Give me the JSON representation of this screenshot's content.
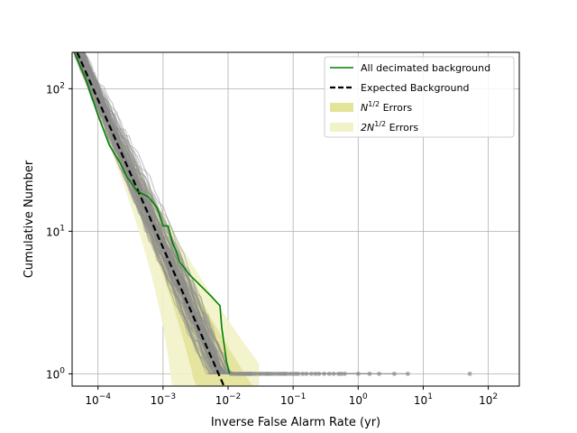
{
  "chart_data": {
    "type": "line",
    "xlabel": "Inverse False Alarm Rate (yr)",
    "ylabel": "Cumulative Number",
    "xscale": "log",
    "yscale": "log",
    "xlim": [
      4e-05,
      300
    ],
    "ylim": [
      0.82,
      180
    ],
    "x_ticks": [
      0.0001,
      0.001,
      0.01,
      0.1,
      1,
      10,
      100
    ],
    "x_tick_labels": [
      {
        "base": "10",
        "exp": "−4"
      },
      {
        "base": "10",
        "exp": "−3"
      },
      {
        "base": "10",
        "exp": "−2"
      },
      {
        "base": "10",
        "exp": "−1"
      },
      {
        "base": "10",
        "exp": "0"
      },
      {
        "base": "10",
        "exp": "1"
      },
      {
        "base": "10",
        "exp": "2"
      }
    ],
    "y_ticks": [
      1,
      10,
      100
    ],
    "y_tick_labels": [
      {
        "base": "10",
        "exp": "0"
      },
      {
        "base": "10",
        "exp": "1"
      },
      {
        "base": "10",
        "exp": "2"
      }
    ],
    "grid": true,
    "legend_position": "top-right",
    "legend": [
      {
        "kind": "line",
        "color": "#008000",
        "dash": "solid",
        "label": "All decimated background"
      },
      {
        "kind": "line",
        "color": "#000000",
        "dash": "dashed",
        "label": "Expected Background"
      },
      {
        "kind": "patch",
        "color": "#e3e39a",
        "label_main": "N",
        "label_sup": "1/2",
        "label_rest": " Errors"
      },
      {
        "kind": "patch",
        "color": "#f2f2c8",
        "label_main": "2N",
        "label_sup": "1/2",
        "label_rest": " Errors"
      }
    ],
    "series": [
      {
        "name": "Expected Background",
        "style": "dashed",
        "color": "#000000",
        "x": [
          4.78e-05,
          0.008633
        ],
        "y": [
          180,
          0.82
        ]
      },
      {
        "name": "All decimated background",
        "style": "solid",
        "color": "#008000",
        "x": [
          4.31e-05,
          6.33e-05,
          0.0001,
          0.00015,
          0.00022,
          0.00028,
          0.0004,
          0.0006,
          0.0008,
          0.001,
          0.0012,
          0.0014,
          0.0016,
          0.0018,
          0.0025,
          0.0035,
          0.0055,
          0.0075,
          0.008,
          0.0095,
          0.0105
        ],
        "y": [
          180,
          120,
          65,
          40,
          30,
          24,
          19.1,
          17.4,
          14.7,
          10.9,
          10.9,
          8.3,
          7.2,
          6.1,
          5.0,
          4.3,
          3.5,
          3.0,
          2.1,
          1.2,
          1.0
        ]
      }
    ],
    "background_trials": {
      "color": "#8c8c8c",
      "description_count": 80,
      "endpoint_markers_x": [
        0.011,
        0.012,
        0.013,
        0.014,
        0.015,
        0.016,
        0.017,
        0.018,
        0.019,
        0.02,
        0.021,
        0.022,
        0.023,
        0.025,
        0.027,
        0.03,
        0.032,
        0.035,
        0.038,
        0.04,
        0.043,
        0.046,
        0.05,
        0.055,
        0.06,
        0.065,
        0.07,
        0.075,
        0.08,
        0.09,
        0.1,
        0.11,
        0.12,
        0.14,
        0.16,
        0.19,
        0.22,
        0.25,
        0.3,
        0.36,
        0.42,
        0.5,
        0.55,
        0.62,
        1.0,
        1.5,
        2.1,
        3.6,
        5.8,
        52
      ],
      "endpoint_markers_y": 1
    }
  }
}
